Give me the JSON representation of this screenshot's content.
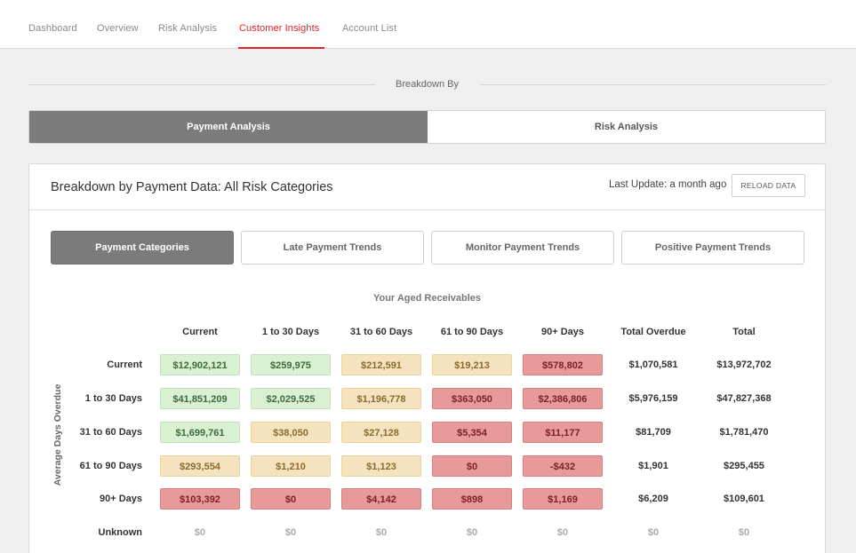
{
  "nav": {
    "tabs": [
      {
        "label": "Dashboard"
      },
      {
        "label": "Overview"
      },
      {
        "label": "Risk Analysis"
      },
      {
        "label": "Customer Insights",
        "active": true
      },
      {
        "label": "Account List"
      }
    ]
  },
  "breakdown": {
    "label": "Breakdown By",
    "options": [
      "Payment Analysis",
      "Risk Analysis"
    ],
    "selected": "Payment Analysis"
  },
  "panel": {
    "title": "Breakdown by Payment Data: All Risk Categories",
    "last_update": "Last Update: a month ago",
    "reload_label": "RELOAD DATA",
    "subtabs": [
      "Payment Categories",
      "Late Payment Trends",
      "Monitor Payment Trends",
      "Positive Payment Trends"
    ],
    "selected_subtab": "Payment Categories"
  },
  "grid": {
    "title": "Your Aged Receivables",
    "y_axis_label": "Average Days Overdue",
    "columns": [
      "Current",
      "1 to 30 Days",
      "31 to 60 Days",
      "61 to 90 Days",
      "90+ Days",
      "Total Overdue",
      "Total"
    ],
    "rows": [
      {
        "label": "Current",
        "cells": [
          "$12,902,121",
          "$259,975",
          "$212,591",
          "$19,213",
          "$578,802",
          "$1,070,581",
          "$13,972,702"
        ]
      },
      {
        "label": "1 to 30 Days",
        "cells": [
          "$41,851,209",
          "$2,029,525",
          "$1,196,778",
          "$363,050",
          "$2,386,806",
          "$5,976,159",
          "$47,827,368"
        ]
      },
      {
        "label": "31 to 60 Days",
        "cells": [
          "$1,699,761",
          "$38,050",
          "$27,128",
          "$5,354",
          "$11,177",
          "$81,709",
          "$1,781,470"
        ]
      },
      {
        "label": "61 to 90 Days",
        "cells": [
          "$293,554",
          "$1,210",
          "$1,123",
          "$0",
          "-$432",
          "$1,901",
          "$295,455"
        ]
      },
      {
        "label": "90+ Days",
        "cells": [
          "$103,392",
          "$0",
          "$4,142",
          "$898",
          "$1,169",
          "$6,209",
          "$109,601"
        ]
      },
      {
        "label": "Unknown",
        "cells": [
          "$0",
          "$0",
          "$0",
          "$0",
          "$0",
          "$0",
          "$0"
        ]
      }
    ],
    "cell_colors": {
      "green": "#d9f0d3",
      "yellow": "#f5e3c0",
      "red": "#e89a9b"
    }
  },
  "theme": {
    "accent": "#d9262a",
    "selected_gray": "#7b7b7b"
  }
}
